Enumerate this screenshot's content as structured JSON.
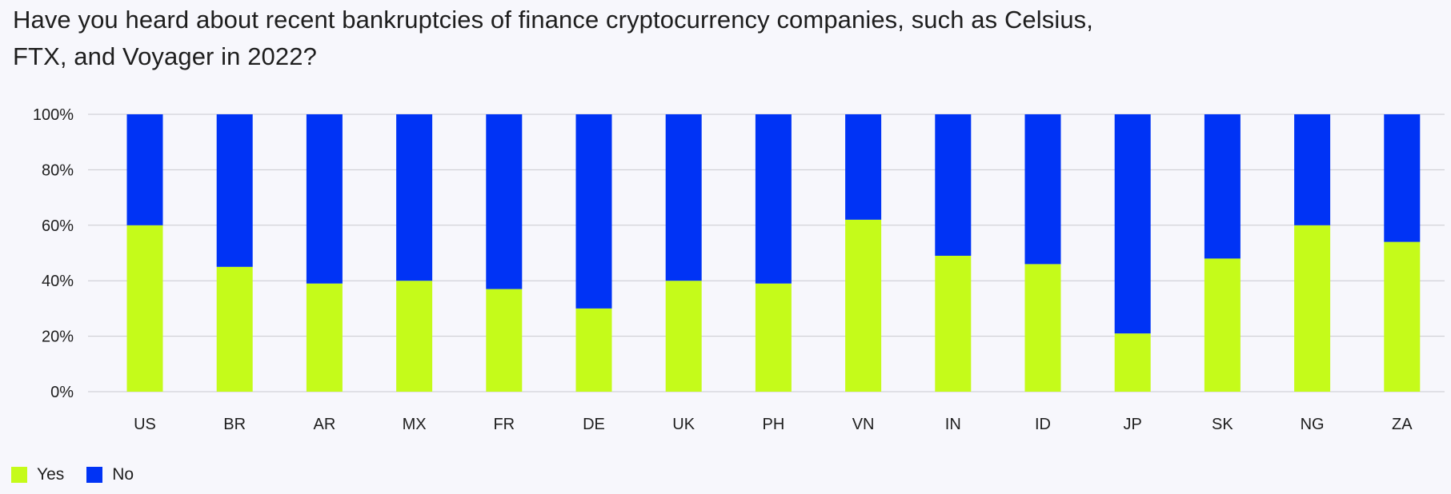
{
  "chart_data": {
    "type": "bar",
    "stacked": true,
    "title": "Have you heard about recent bankruptcies of finance cryptocurrency companies, such as Celsius, FTX, and Voyager in 2022?",
    "xlabel": "",
    "ylabel": "",
    "ylim": [
      0,
      100
    ],
    "yticks": [
      0,
      20,
      40,
      60,
      80,
      100
    ],
    "ytick_labels": [
      "0%",
      "20%",
      "40%",
      "60%",
      "80%",
      "100%"
    ],
    "grid": true,
    "legend_position": "bottom-left",
    "categories": [
      "US",
      "BR",
      "AR",
      "MX",
      "FR",
      "DE",
      "UK",
      "PH",
      "VN",
      "IN",
      "ID",
      "JP",
      "SK",
      "NG",
      "ZA"
    ],
    "series": [
      {
        "name": "Yes",
        "color": "#c5fb1a",
        "values": [
          60,
          45,
          39,
          40,
          37,
          30,
          40,
          39,
          62,
          49,
          46,
          21,
          48,
          60,
          54
        ]
      },
      {
        "name": "No",
        "color": "#0033f5",
        "values": [
          40,
          55,
          61,
          60,
          63,
          70,
          60,
          61,
          38,
          51,
          54,
          79,
          52,
          40,
          46
        ]
      }
    ]
  }
}
